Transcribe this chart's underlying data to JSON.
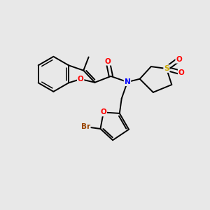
{
  "bg_color": "#e8e8e8",
  "bond_color": "#000000",
  "atom_colors": {
    "O": "#ff0000",
    "N": "#0000ff",
    "S": "#ccaa00",
    "Br": "#994400",
    "C": "#000000"
  },
  "lw": 1.4,
  "lw_inner": 1.1,
  "fontsize": 7.5
}
